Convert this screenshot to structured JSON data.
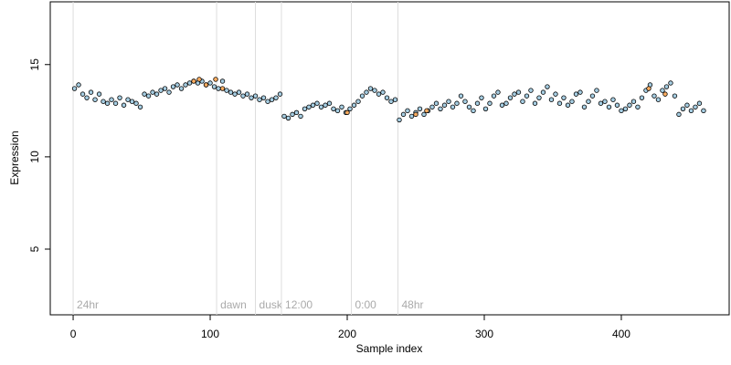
{
  "chart_data": {
    "type": "scatter",
    "xlabel": "Sample index",
    "ylabel": "Expression",
    "xlim": [
      -16.7,
      478.7
    ],
    "ylim": [
      1.44,
      18.4
    ],
    "xticks": [
      0,
      100,
      200,
      300,
      400
    ],
    "yticks": [
      5,
      10,
      15
    ],
    "vlines": [
      {
        "value": 0,
        "label": "24hr"
      },
      {
        "value": 104.7,
        "label": "dawn"
      },
      {
        "value": 133,
        "label": "dusk"
      },
      {
        "value": 152,
        "label": "12:00"
      },
      {
        "value": 203,
        "label": "0:00"
      },
      {
        "value": 237,
        "label": "48hr"
      }
    ],
    "series": [
      {
        "color": "#a6cee3",
        "x": [
          1,
          4,
          7,
          10,
          13,
          16,
          19,
          22,
          25,
          28,
          31,
          34,
          37,
          40,
          43,
          46,
          49,
          52,
          55,
          58,
          61,
          64,
          67,
          70,
          73,
          76,
          79,
          82,
          85,
          88,
          91,
          94,
          97,
          100,
          103,
          106,
          109,
          112,
          115,
          118,
          121,
          124,
          127,
          130,
          133,
          136,
          139,
          142,
          145,
          148,
          151,
          154,
          157,
          160,
          163,
          166,
          169,
          172,
          175,
          178,
          181,
          184,
          187,
          190,
          193,
          196,
          199,
          202,
          205,
          208,
          211,
          214,
          217,
          220,
          223,
          226,
          229,
          232,
          235,
          238,
          241,
          244,
          247,
          250,
          253,
          256,
          259,
          262,
          265,
          268,
          271,
          274,
          277,
          280,
          283,
          286,
          289,
          292,
          295,
          298,
          301,
          304,
          307,
          310,
          313,
          316,
          319,
          322,
          325,
          328,
          331,
          334,
          337,
          340,
          343,
          346,
          349,
          352,
          355,
          358,
          361,
          364,
          367,
          370,
          373,
          376,
          379,
          382,
          385,
          388,
          391,
          394,
          397,
          400,
          403,
          406,
          409,
          412,
          415,
          418,
          421,
          424,
          427,
          430,
          433,
          436,
          439,
          442,
          445,
          448,
          451,
          454,
          457,
          460
        ],
        "values": [
          13.7,
          13.9,
          13.4,
          13.2,
          13.5,
          13.1,
          13.4,
          13.0,
          12.9,
          13.1,
          12.9,
          13.2,
          12.8,
          13.1,
          13.0,
          12.9,
          12.7,
          13.4,
          13.3,
          13.5,
          13.4,
          13.6,
          13.7,
          13.5,
          13.8,
          13.9,
          13.7,
          13.9,
          14.0,
          14.1,
          14.0,
          14.1,
          13.9,
          14.0,
          13.8,
          13.7,
          14.1,
          13.6,
          13.5,
          13.4,
          13.5,
          13.3,
          13.4,
          13.2,
          13.3,
          13.1,
          13.2,
          13.0,
          13.1,
          13.2,
          13.4,
          12.2,
          12.1,
          12.3,
          12.4,
          12.2,
          12.6,
          12.7,
          12.8,
          12.9,
          12.7,
          12.8,
          12.9,
          12.6,
          12.5,
          12.7,
          12.4,
          12.6,
          12.8,
          13.0,
          13.3,
          13.5,
          13.7,
          13.6,
          13.4,
          13.5,
          13.2,
          13.0,
          13.1,
          12.0,
          12.3,
          12.5,
          12.2,
          12.4,
          12.6,
          12.3,
          12.5,
          12.7,
          12.9,
          12.6,
          12.8,
          13.0,
          12.7,
          12.9,
          13.3,
          13.0,
          12.7,
          12.5,
          12.9,
          13.2,
          12.6,
          12.9,
          13.3,
          13.5,
          12.8,
          12.9,
          13.2,
          13.4,
          13.5,
          13.0,
          13.3,
          13.6,
          12.9,
          13.2,
          13.5,
          13.8,
          13.1,
          13.4,
          12.9,
          13.2,
          12.8,
          13.0,
          13.4,
          13.5,
          12.7,
          13.0,
          13.3,
          13.6,
          12.9,
          13.0,
          12.7,
          13.1,
          12.8,
          12.5,
          12.6,
          12.8,
          13.0,
          12.7,
          13.2,
          13.6,
          13.9,
          13.3,
          13.1,
          13.6,
          13.8,
          14.0,
          13.3,
          12.3,
          12.6,
          12.8,
          12.5,
          12.7,
          12.9,
          12.5
        ]
      },
      {
        "color": "#fdae61",
        "x": [
          88,
          92,
          97,
          104,
          109,
          200,
          250,
          258,
          420,
          432
        ],
        "values": [
          14.1,
          14.2,
          13.9,
          14.2,
          13.7,
          12.4,
          12.3,
          12.5,
          13.7,
          13.4
        ]
      }
    ]
  }
}
